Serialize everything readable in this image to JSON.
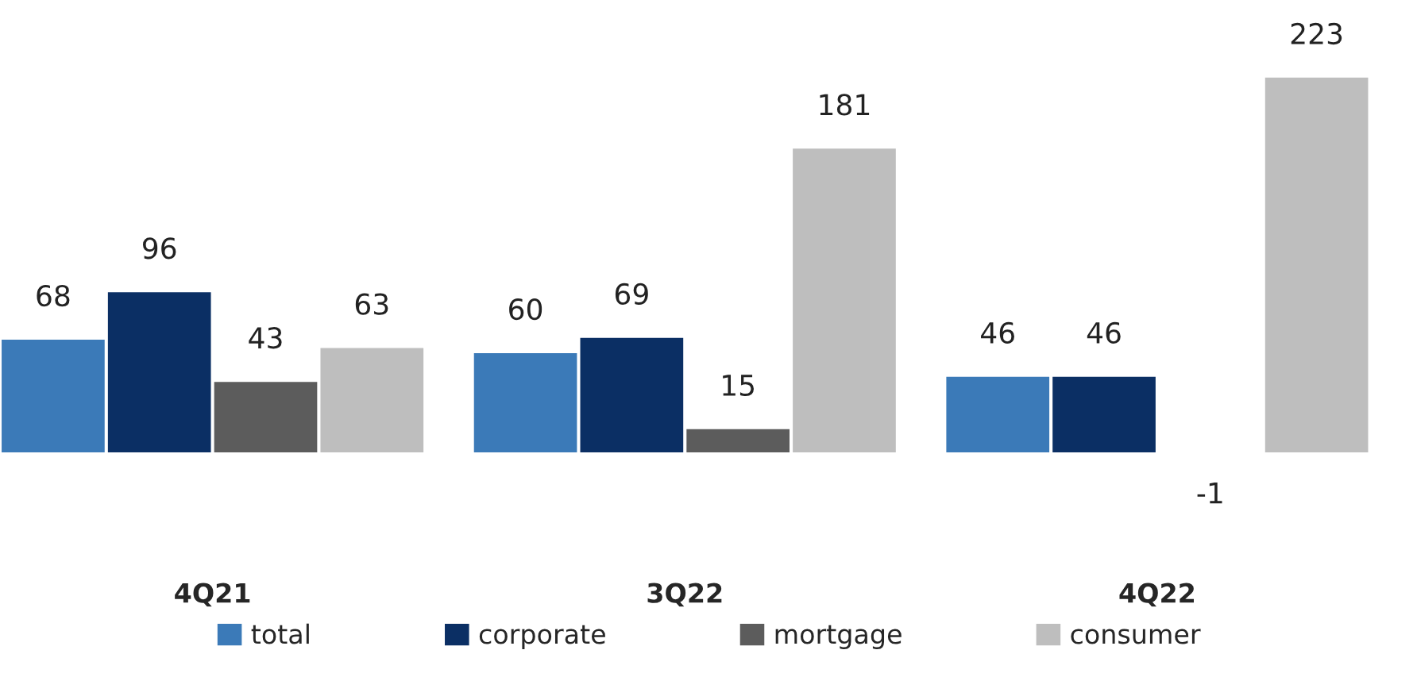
{
  "chart_data": {
    "type": "bar",
    "categories": [
      "4Q21",
      "3Q22",
      "4Q22"
    ],
    "series": [
      {
        "name": "total",
        "color": "#3b7ab8",
        "values": [
          68,
          60,
          46
        ]
      },
      {
        "name": "corporate",
        "color": "#0b2f64",
        "values": [
          96,
          69,
          46
        ]
      },
      {
        "name": "mortgage",
        "color": "#5c5c5c",
        "values": [
          43,
          15,
          -1
        ]
      },
      {
        "name": "consumer",
        "color": "#bebebe",
        "values": [
          63,
          181,
          223
        ]
      }
    ],
    "data_labels": true,
    "legend": "bottom"
  }
}
